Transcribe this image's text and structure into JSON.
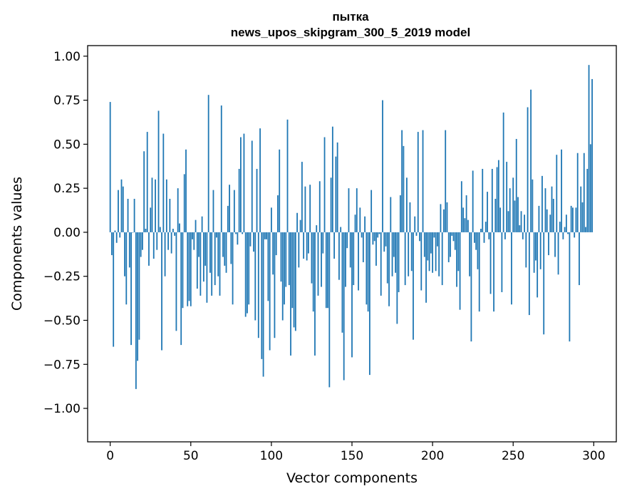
{
  "chart_data": {
    "type": "bar",
    "title": "пытка",
    "subtitle": "news_upos_skipgram_300_5_2019 model",
    "xlabel": "Vector components",
    "ylabel": "Components values",
    "xlim": [
      -14,
      314
    ],
    "ylim": [
      -1.19,
      1.06
    ],
    "xticks": [
      0,
      50,
      100,
      150,
      200,
      250,
      300
    ],
    "yticks": [
      -1.0,
      -0.75,
      -0.5,
      -0.25,
      0.0,
      0.25,
      0.5,
      0.75,
      1.0
    ],
    "ytick_labels": [
      "−1.00",
      "−0.75",
      "−0.50",
      "−0.25",
      "0.00",
      "0.25",
      "0.50",
      "0.75",
      "1.00"
    ],
    "bar_color": "#1f77b4",
    "x": [
      0,
      1,
      2,
      3,
      4,
      5,
      6,
      7,
      8,
      9,
      10,
      11,
      12,
      13,
      14,
      15,
      16,
      17,
      18,
      19,
      20,
      21,
      22,
      23,
      24,
      25,
      26,
      27,
      28,
      29,
      30,
      31,
      32,
      33,
      34,
      35,
      36,
      37,
      38,
      39,
      40,
      41,
      42,
      43,
      44,
      45,
      46,
      47,
      48,
      49,
      50,
      51,
      52,
      53,
      54,
      55,
      56,
      57,
      58,
      59,
      60,
      61,
      62,
      63,
      64,
      65,
      66,
      67,
      68,
      69,
      70,
      71,
      72,
      73,
      74,
      75,
      76,
      77,
      78,
      79,
      80,
      81,
      82,
      83,
      84,
      85,
      86,
      87,
      88,
      89,
      90,
      91,
      92,
      93,
      94,
      95,
      96,
      97,
      98,
      99,
      100,
      101,
      102,
      103,
      104,
      105,
      106,
      107,
      108,
      109,
      110,
      111,
      112,
      113,
      114,
      115,
      116,
      117,
      118,
      119,
      120,
      121,
      122,
      123,
      124,
      125,
      126,
      127,
      128,
      129,
      130,
      131,
      132,
      133,
      134,
      135,
      136,
      137,
      138,
      139,
      140,
      141,
      142,
      143,
      144,
      145,
      146,
      147,
      148,
      149,
      150,
      151,
      152,
      153,
      154,
      155,
      156,
      157,
      158,
      159,
      160,
      161,
      162,
      163,
      164,
      165,
      166,
      167,
      168,
      169,
      170,
      171,
      172,
      173,
      174,
      175,
      176,
      177,
      178,
      179,
      180,
      181,
      182,
      183,
      184,
      185,
      186,
      187,
      188,
      189,
      190,
      191,
      192,
      193,
      194,
      195,
      196,
      197,
      198,
      199,
      200,
      201,
      202,
      203,
      204,
      205,
      206,
      207,
      208,
      209,
      210,
      211,
      212,
      213,
      214,
      215,
      216,
      217,
      218,
      219,
      220,
      221,
      222,
      223,
      224,
      225,
      226,
      227,
      228,
      229,
      230,
      231,
      232,
      233,
      234,
      235,
      236,
      237,
      238,
      239,
      240,
      241,
      242,
      243,
      244,
      245,
      246,
      247,
      248,
      249,
      250,
      251,
      252,
      253,
      254,
      255,
      256,
      257,
      258,
      259,
      260,
      261,
      262,
      263,
      264,
      265,
      266,
      267,
      268,
      269,
      270,
      271,
      272,
      273,
      274,
      275,
      276,
      277,
      278,
      279,
      280,
      281,
      282,
      283,
      284,
      285,
      286,
      287,
      288,
      289,
      290,
      291,
      292,
      293,
      294,
      295,
      296,
      297,
      298,
      299
    ],
    "values": [
      0.74,
      -0.13,
      -0.65,
      0.01,
      -0.06,
      0.24,
      -0.03,
      0.3,
      0.26,
      -0.25,
      -0.41,
      0.19,
      -0.2,
      -0.64,
      0.0,
      0.19,
      -0.89,
      -0.73,
      -0.61,
      -0.14,
      -0.1,
      0.46,
      0.02,
      0.57,
      -0.19,
      0.14,
      0.31,
      -0.15,
      0.3,
      -0.1,
      0.69,
      0.03,
      -0.67,
      0.56,
      -0.25,
      0.3,
      -0.1,
      0.19,
      -0.12,
      0.02,
      -0.02,
      -0.56,
      0.25,
      0.05,
      -0.64,
      -0.43,
      0.33,
      0.47,
      -0.42,
      -0.39,
      -0.42,
      -0.04,
      -0.1,
      0.07,
      -0.32,
      -0.14,
      -0.36,
      0.09,
      -0.28,
      -0.19,
      -0.4,
      0.78,
      -0.23,
      -0.36,
      0.24,
      -0.3,
      -0.03,
      -0.25,
      -0.36,
      0.72,
      -0.14,
      -0.19,
      -0.23,
      0.15,
      0.27,
      -0.18,
      -0.41,
      0.24,
      -0.01,
      -0.07,
      0.36,
      0.54,
      -0.01,
      0.56,
      -0.48,
      -0.46,
      -0.41,
      -0.08,
      0.52,
      -0.11,
      -0.5,
      0.36,
      -0.6,
      0.59,
      -0.72,
      -0.82,
      -0.04,
      -0.04,
      -0.39,
      -0.67,
      0.14,
      -0.24,
      -0.6,
      -0.13,
      0.21,
      0.47,
      -0.28,
      -0.5,
      -0.41,
      -0.31,
      0.64,
      -0.3,
      -0.7,
      -0.43,
      -0.54,
      -0.56,
      0.11,
      -0.2,
      0.07,
      0.4,
      -0.15,
      0.26,
      -0.16,
      -0.12,
      0.27,
      -0.29,
      -0.45,
      -0.7,
      0.04,
      -0.36,
      0.29,
      -0.31,
      -0.12,
      0.54,
      -0.43,
      -0.43,
      -0.88,
      0.31,
      0.6,
      -0.15,
      0.43,
      0.51,
      -0.27,
      0.03,
      -0.57,
      -0.84,
      -0.31,
      -0.09,
      0.25,
      -0.2,
      -0.71,
      -0.3,
      0.1,
      0.25,
      -0.33,
      0.14,
      -0.03,
      -0.17,
      0.09,
      -0.41,
      -0.45,
      -0.81,
      0.24,
      -0.07,
      -0.05,
      -0.19,
      -0.03,
      -0.01,
      -0.36,
      0.75,
      -0.11,
      -0.08,
      -0.29,
      -0.42,
      0.2,
      -0.25,
      -0.14,
      -0.23,
      -0.52,
      -0.34,
      0.21,
      0.58,
      0.49,
      -0.3,
      0.31,
      -0.25,
      0.17,
      -0.22,
      -0.61,
      0.09,
      -0.02,
      0.57,
      -0.05,
      -0.33,
      0.58,
      -0.14,
      -0.4,
      -0.16,
      -0.22,
      -0.12,
      -0.23,
      -0.03,
      -0.22,
      -0.08,
      -0.25,
      0.16,
      -0.3,
      0.13,
      0.58,
      0.17,
      -0.17,
      -0.14,
      -0.02,
      -0.05,
      -0.1,
      -0.31,
      -0.22,
      -0.44,
      0.29,
      0.14,
      0.08,
      0.21,
      0.07,
      -0.25,
      -0.62,
      0.35,
      -0.06,
      -0.1,
      -0.21,
      -0.45,
      0.02,
      0.36,
      -0.06,
      0.06,
      0.23,
      -0.04,
      -0.35,
      0.36,
      -0.45,
      0.19,
      0.37,
      0.41,
      0.14,
      -0.34,
      0.68,
      -0.04,
      0.4,
      0.12,
      0.25,
      -0.41,
      0.31,
      0.18,
      0.53,
      0.2,
      0.04,
      0.12,
      -0.04,
      0.1,
      -0.2,
      0.71,
      -0.47,
      0.81,
      0.3,
      -0.23,
      -0.16,
      -0.37,
      0.15,
      -0.21,
      0.32,
      -0.58,
      0.25,
      0.13,
      -0.13,
      0.1,
      0.26,
      0.19,
      -0.14,
      0.44,
      -0.24,
      0.06,
      0.47,
      -0.04,
      0.03,
      0.1,
      -0.01,
      -0.62,
      0.15,
      0.14,
      -0.03,
      0.14,
      0.45,
      -0.3,
      0.26,
      0.17,
      0.45,
      0.03,
      0.36,
      0.95,
      0.5,
      0.87
    ],
    "grid": false,
    "legend": "none"
  }
}
